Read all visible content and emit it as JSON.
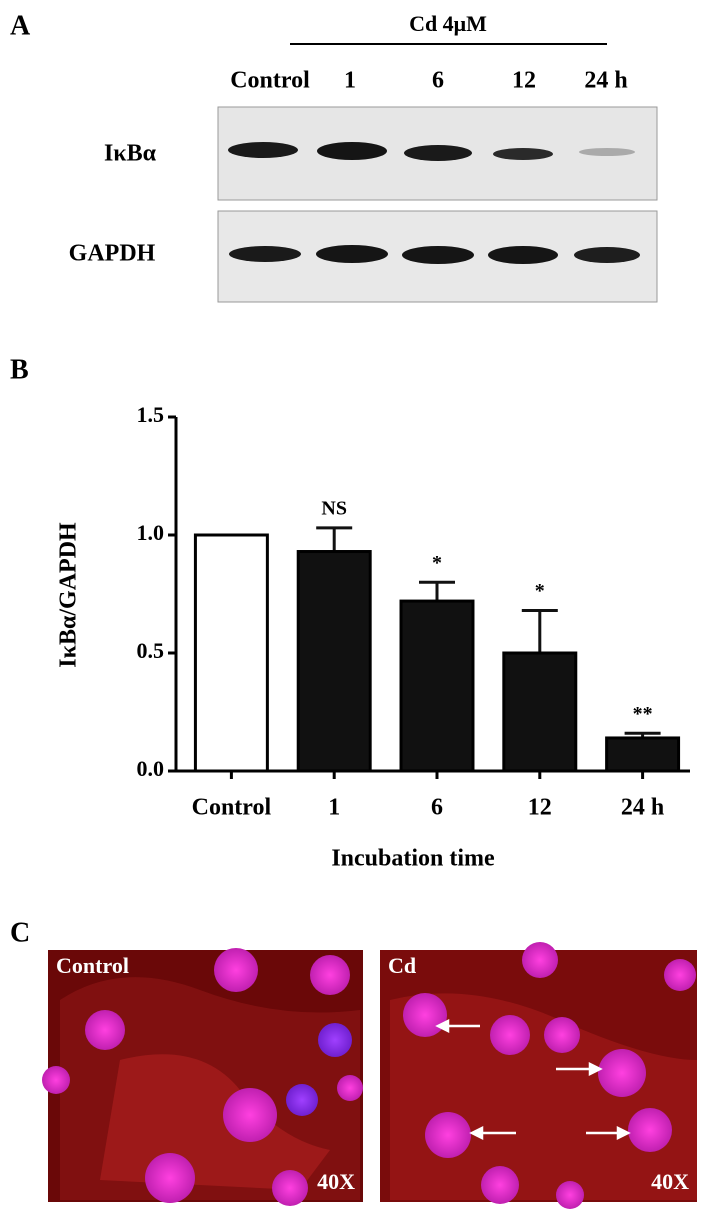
{
  "panel_a": {
    "letter": "A",
    "treatment": "Cd  4μM",
    "lanes": [
      "Control",
      "1",
      "6",
      "12",
      "24 h"
    ],
    "rows": [
      "IκBα",
      "GAPDH"
    ]
  },
  "chart_data": {
    "type": "bar",
    "letter": "B",
    "ylabel": "IκBα/GAPDH",
    "xlabel": "Incubation time",
    "categories": [
      "Control",
      "1",
      "6",
      "12",
      "24 h"
    ],
    "values": [
      1.0,
      0.93,
      0.72,
      0.5,
      0.14
    ],
    "errors": [
      null,
      0.1,
      0.08,
      0.18,
      0.02
    ],
    "annotations": [
      null,
      "NS",
      "*",
      "*",
      "**"
    ],
    "colors": [
      "#ffffff",
      "#111111",
      "#111111",
      "#111111",
      "#111111"
    ],
    "ylim": [
      0,
      1.5
    ],
    "yticks": [
      {
        "value": 0,
        "label": "0.0"
      },
      {
        "value": 0.5,
        "label": "0.5"
      },
      {
        "value": 1,
        "label": "1.0"
      },
      {
        "value": 1.5,
        "label": "1.5"
      }
    ]
  },
  "panel_c": {
    "letter": "C",
    "images": [
      {
        "label": "Control",
        "magnification": "40X"
      },
      {
        "label": "Cd",
        "magnification": "40X"
      }
    ]
  }
}
